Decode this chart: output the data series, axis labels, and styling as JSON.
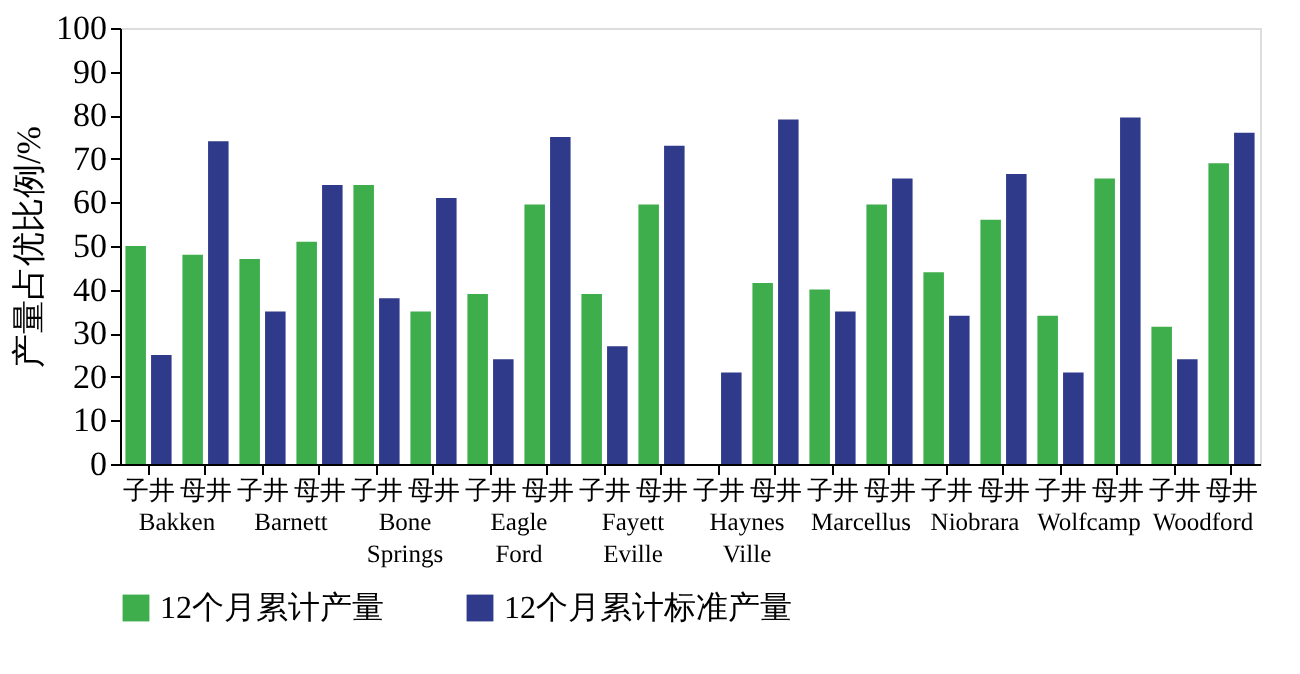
{
  "chart_data": {
    "type": "bar",
    "ylabel": "产量占优比例/%",
    "categories": [
      "子井",
      "母井",
      "子井",
      "母井",
      "子井",
      "母井",
      "子井",
      "母井",
      "子井",
      "母井",
      "子井",
      "母井",
      "子井",
      "母井",
      "子井",
      "母井",
      "子井",
      "母井",
      "子井",
      "母井"
    ],
    "series": [
      {
        "name": "12个月累计产量",
        "color": "#3dae4b",
        "values": [
          50,
          48,
          47,
          51,
          64,
          35,
          39,
          59.5,
          39,
          59.5,
          null,
          41.5,
          40,
          59.5,
          44,
          56,
          34,
          65.5,
          31.5,
          69
        ]
      },
      {
        "name": "12个月累计标准产量",
        "color": "#2f3a8a",
        "values": [
          25,
          74,
          35,
          64,
          38,
          61,
          24,
          75,
          27,
          73,
          21,
          79,
          35,
          65.5,
          34,
          66.5,
          21,
          79.5,
          24,
          76
        ]
      }
    ],
    "annotations": [
      "Bakken",
      "Barnett",
      "Bone Springs",
      "Eagle Ford",
      "Fayett Eville",
      "Haynes Ville",
      "Marcellus",
      "Niobrara",
      "Wolfcamp",
      "Woodford"
    ],
    "ylim": [
      0,
      100
    ],
    "yticks": [
      0,
      10,
      20,
      30,
      40,
      50,
      60,
      70,
      80,
      90,
      100
    ],
    "grid": false,
    "legend": "bottom"
  }
}
